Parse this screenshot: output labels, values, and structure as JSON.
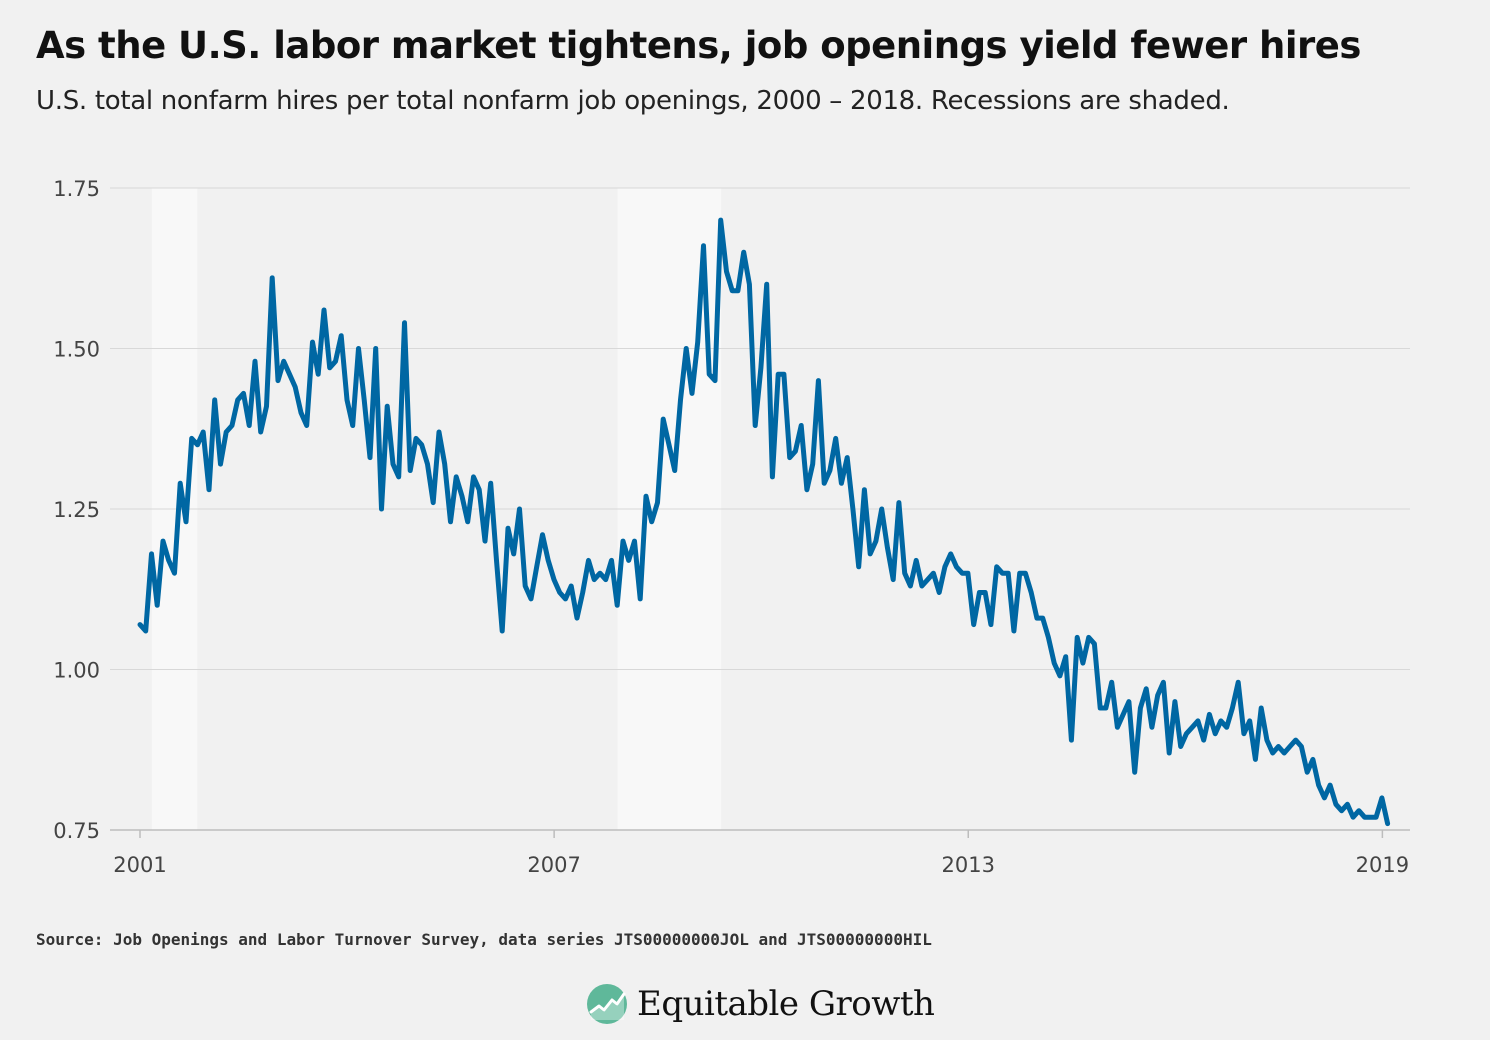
{
  "title": "As the U.S. labor market tightens, job openings yield fewer hires",
  "subtitle": "U.S. total nonfarm hires per total nonfarm job openings, 2000 – 2018. Recessions are shaded.",
  "source": "Source: Job Openings and Labor Turnover Survey, data series JTS00000000JOL and JTS00000000HIL",
  "brand": {
    "name": "Equitable Growth",
    "logo_icon": "growth-circle-icon",
    "logo_color": "#5fb89a"
  },
  "colors": {
    "line": "#0067a3",
    "recession": "#f8f8f8",
    "grid": "#d8d8d8",
    "background": "#f1f1f1"
  },
  "chart_data": {
    "type": "line",
    "title": "As the U.S. labor market tightens, job openings yield fewer hires",
    "subtitle": "U.S. total nonfarm hires per total nonfarm job openings, 2000 – 2018. Recessions are shaded.",
    "xlabel": "",
    "ylabel": "",
    "xlim": [
      2001.0,
      2019.4
    ],
    "ylim": [
      0.75,
      1.75
    ],
    "y_ticks": [
      0.75,
      1.0,
      1.25,
      1.5,
      1.75
    ],
    "y_tick_labels": [
      "0.75",
      "1.00",
      "1.25",
      "1.50",
      "1.75"
    ],
    "x_ticks": [
      2001,
      2007,
      2013,
      2019
    ],
    "x_tick_labels": [
      "2001",
      "2007",
      "2013",
      "2019"
    ],
    "grid": true,
    "recessions": [
      {
        "start": 2001.17,
        "end": 2001.83
      },
      {
        "start": 2007.92,
        "end": 2009.42
      }
    ],
    "series": [
      {
        "x_start": 2001.0,
        "x_step": 0.0833,
        "values": [
          1.07,
          1.06,
          1.18,
          1.1,
          1.2,
          1.17,
          1.15,
          1.29,
          1.23,
          1.36,
          1.35,
          1.37,
          1.28,
          1.42,
          1.32,
          1.37,
          1.38,
          1.42,
          1.43,
          1.38,
          1.48,
          1.37,
          1.41,
          1.61,
          1.45,
          1.48,
          1.46,
          1.44,
          1.4,
          1.38,
          1.51,
          1.46,
          1.56,
          1.47,
          1.48,
          1.52,
          1.42,
          1.38,
          1.5,
          1.42,
          1.33,
          1.5,
          1.25,
          1.41,
          1.32,
          1.3,
          1.54,
          1.31,
          1.36,
          1.35,
          1.32,
          1.26,
          1.37,
          1.32,
          1.23,
          1.3,
          1.27,
          1.23,
          1.3,
          1.28,
          1.2,
          1.29,
          1.17,
          1.06,
          1.22,
          1.18,
          1.25,
          1.13,
          1.11,
          1.16,
          1.21,
          1.17,
          1.14,
          1.12,
          1.11,
          1.13,
          1.08,
          1.12,
          1.17,
          1.14,
          1.15,
          1.14,
          1.17,
          1.1,
          1.2,
          1.17,
          1.2,
          1.11,
          1.27,
          1.23,
          1.26,
          1.39,
          1.35,
          1.31,
          1.42,
          1.5,
          1.43,
          1.51,
          1.66,
          1.46,
          1.45,
          1.7,
          1.62,
          1.59,
          1.59,
          1.65,
          1.6,
          1.38,
          1.47,
          1.6,
          1.3,
          1.46,
          1.46,
          1.33,
          1.34,
          1.38,
          1.28,
          1.32,
          1.45,
          1.29,
          1.31,
          1.36,
          1.29,
          1.33,
          1.25,
          1.16,
          1.28,
          1.18,
          1.2,
          1.25,
          1.19,
          1.14,
          1.26,
          1.15,
          1.13,
          1.17,
          1.13,
          1.14,
          1.15,
          1.12,
          1.16,
          1.18,
          1.16,
          1.15,
          1.15,
          1.07,
          1.12,
          1.12,
          1.07,
          1.16,
          1.15,
          1.15,
          1.06,
          1.15,
          1.15,
          1.12,
          1.08,
          1.08,
          1.05,
          1.01,
          0.99,
          1.02,
          0.89,
          1.05,
          1.01,
          1.05,
          1.04,
          0.94,
          0.94,
          0.98,
          0.91,
          0.93,
          0.95,
          0.84,
          0.94,
          0.97,
          0.91,
          0.96,
          0.98,
          0.87,
          0.95,
          0.88,
          0.9,
          0.91,
          0.92,
          0.89,
          0.93,
          0.9,
          0.92,
          0.91,
          0.94,
          0.98,
          0.9,
          0.92,
          0.86,
          0.94,
          0.89,
          0.87,
          0.88,
          0.87,
          0.88,
          0.89,
          0.88,
          0.84,
          0.86,
          0.82,
          0.8,
          0.82,
          0.79,
          0.78,
          0.79,
          0.77,
          0.78,
          0.77,
          0.77,
          0.77,
          0.8,
          0.76
        ]
      }
    ]
  }
}
